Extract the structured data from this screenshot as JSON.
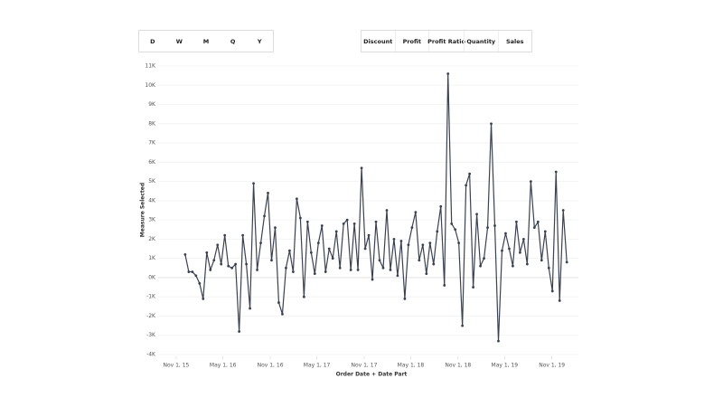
{
  "date_parts": [
    "D",
    "W",
    "M",
    "Q",
    "Y"
  ],
  "measures": [
    "Discount",
    "Profit",
    "Profit Ratio",
    "Quantity",
    "Sales"
  ],
  "chart_data": {
    "type": "line",
    "x_label": "Order Date + Date Part",
    "y_label": "Measure Selected",
    "color": "#3a4151",
    "grid": true,
    "xlim": [
      "2015-08-23",
      "2020-02-12"
    ],
    "xticks": [
      {
        "value": "2015-11-01",
        "label": "Nov 1, 15"
      },
      {
        "value": "2016-05-01",
        "label": "May 1, 16"
      },
      {
        "value": "2016-11-01",
        "label": "Nov 1, 16"
      },
      {
        "value": "2017-05-01",
        "label": "May 1, 17"
      },
      {
        "value": "2017-11-01",
        "label": "Nov 1, 17"
      },
      {
        "value": "2018-05-01",
        "label": "May 1, 18"
      },
      {
        "value": "2018-11-01",
        "label": "Nov 1, 18"
      },
      {
        "value": "2019-05-01",
        "label": "May 1, 19"
      },
      {
        "value": "2019-11-01",
        "label": "Nov 1, 19"
      }
    ],
    "ylim": [
      -4000,
      11000
    ],
    "yticks": [
      {
        "value": -4000,
        "label": "-4K"
      },
      {
        "value": -3000,
        "label": "-3K"
      },
      {
        "value": -2000,
        "label": "-2K"
      },
      {
        "value": -1000,
        "label": "-1K"
      },
      {
        "value": 0,
        "label": "0K"
      },
      {
        "value": 1000,
        "label": "1K"
      },
      {
        "value": 2000,
        "label": "2K"
      },
      {
        "value": 3000,
        "label": "3K"
      },
      {
        "value": 4000,
        "label": "4K"
      },
      {
        "value": 5000,
        "label": "5K"
      },
      {
        "value": 6000,
        "label": "6K"
      },
      {
        "value": 7000,
        "label": "7K"
      },
      {
        "value": 8000,
        "label": "8K"
      },
      {
        "value": 9000,
        "label": "9K"
      },
      {
        "value": 10000,
        "label": "10K"
      },
      {
        "value": 11000,
        "label": "11K"
      }
    ],
    "x": [
      "2015-12-06",
      "2015-12-20",
      "2016-01-03",
      "2016-01-17",
      "2016-01-31",
      "2016-02-14",
      "2016-02-28",
      "2016-03-13",
      "2016-03-27",
      "2016-04-10",
      "2016-04-24",
      "2016-05-08",
      "2016-05-22",
      "2016-06-05",
      "2016-06-19",
      "2016-07-03",
      "2016-07-17",
      "2016-07-31",
      "2016-08-14",
      "2016-08-28",
      "2016-09-11",
      "2016-09-25",
      "2016-10-09",
      "2016-10-23",
      "2016-11-06",
      "2016-11-20",
      "2016-12-04",
      "2016-12-18",
      "2017-01-01",
      "2017-01-15",
      "2017-01-29",
      "2017-02-12",
      "2017-02-26",
      "2017-03-12",
      "2017-03-26",
      "2017-04-09",
      "2017-04-23",
      "2017-05-07",
      "2017-05-21",
      "2017-06-04",
      "2017-06-18",
      "2017-07-02",
      "2017-07-16",
      "2017-07-30",
      "2017-08-13",
      "2017-08-27",
      "2017-09-10",
      "2017-09-24",
      "2017-10-08",
      "2017-10-22",
      "2017-11-05",
      "2017-11-19",
      "2017-12-03",
      "2017-12-17",
      "2017-12-31",
      "2018-01-14",
      "2018-01-28",
      "2018-02-11",
      "2018-02-25",
      "2018-03-11",
      "2018-03-25",
      "2018-04-08",
      "2018-04-22",
      "2018-05-06",
      "2018-05-20",
      "2018-06-03",
      "2018-06-17",
      "2018-07-01",
      "2018-07-15",
      "2018-07-29",
      "2018-08-12",
      "2018-08-26",
      "2018-09-09",
      "2018-09-23",
      "2018-10-07",
      "2018-10-21",
      "2018-11-04",
      "2018-11-18",
      "2018-12-02",
      "2018-12-16",
      "2018-12-30",
      "2019-01-13",
      "2019-01-27",
      "2019-02-10",
      "2019-02-24",
      "2019-03-10",
      "2019-03-24",
      "2019-04-07",
      "2019-04-21",
      "2019-05-05",
      "2019-05-19",
      "2019-06-02",
      "2019-06-16",
      "2019-06-30",
      "2019-07-14",
      "2019-07-28",
      "2019-08-11",
      "2019-08-25",
      "2019-09-08",
      "2019-09-22",
      "2019-10-06",
      "2019-10-20",
      "2019-11-03",
      "2019-11-17",
      "2019-12-01",
      "2019-12-15",
      "2019-12-29"
    ],
    "values": [
      1200,
      300,
      300,
      100,
      -300,
      -1100,
      1300,
      400,
      900,
      1700,
      700,
      2200,
      600,
      500,
      700,
      -2800,
      2200,
      700,
      -1600,
      4900,
      400,
      1800,
      3200,
      4400,
      900,
      2600,
      -1300,
      -1900,
      500,
      1400,
      300,
      4100,
      3100,
      -1000,
      2900,
      1300,
      200,
      1800,
      2700,
      300,
      1500,
      1000,
      2400,
      500,
      2800,
      3000,
      400,
      2800,
      400,
      5700,
      1500,
      2200,
      -100,
      2900,
      900,
      500,
      3500,
      400,
      2000,
      100,
      1900,
      -1100,
      1700,
      2600,
      3400,
      900,
      1700,
      200,
      1800,
      700,
      2400,
      3700,
      -400,
      10600,
      2800,
      2500,
      1800,
      -2500,
      4800,
      5400,
      -500,
      3300,
      600,
      1000,
      2600,
      8000,
      2700,
      -3300,
      1400,
      2300,
      1500,
      600,
      2900,
      1300,
      2000,
      700,
      5000,
      2600,
      2900,
      900,
      2400,
      500,
      -700,
      5500,
      -1200,
      3500,
      800
    ]
  }
}
